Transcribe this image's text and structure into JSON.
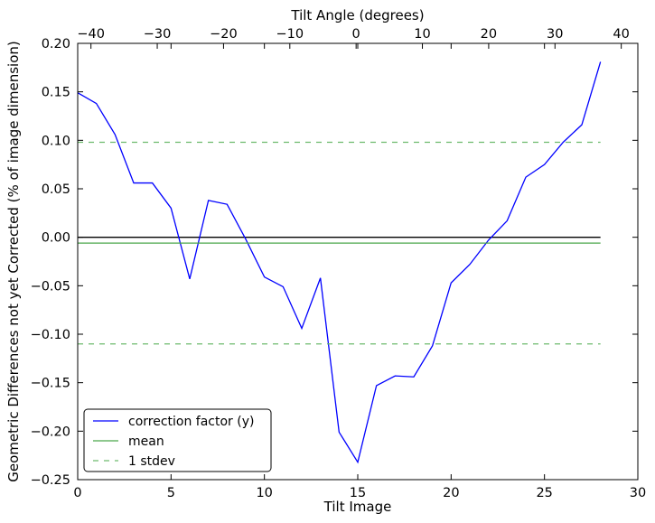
{
  "chart_data": {
    "type": "line",
    "xlabel": "Tilt Image",
    "ylabel": "Geometric Differences not yet Corrected (% of image dimension)",
    "top_xlabel": "Tilt Angle (degrees)",
    "xlim": [
      0,
      30
    ],
    "ylim": [
      -0.25,
      0.2
    ],
    "top_xlim": [
      -42,
      42.5
    ],
    "xticks": [
      0,
      5,
      10,
      15,
      20,
      25,
      30
    ],
    "xtick_labels": [
      "0",
      "5",
      "10",
      "15",
      "20",
      "25",
      "30"
    ],
    "yticks": [
      -0.25,
      -0.2,
      -0.15,
      -0.1,
      -0.05,
      0.0,
      0.05,
      0.1,
      0.15,
      0.2
    ],
    "ytick_labels": [
      "−0.25",
      "−0.20",
      "−0.15",
      "−0.10",
      "−0.05",
      "0.00",
      "0.05",
      "0.10",
      "0.15",
      "0.20"
    ],
    "top_xticks": [
      -40,
      -30,
      -20,
      -10,
      0,
      10,
      20,
      30,
      40
    ],
    "top_xtick_labels": [
      "−40",
      "−30",
      "−20",
      "−10",
      "0",
      "10",
      "20",
      "30",
      "40"
    ],
    "grid": false,
    "legend_position": "lower-left",
    "series": [
      {
        "name": "correction factor (y)",
        "color": "#0000ff",
        "style": "solid",
        "x": [
          0,
          1,
          2,
          3,
          4,
          5,
          6,
          7,
          8,
          9,
          10,
          11,
          12,
          13,
          14,
          15,
          16,
          17,
          18,
          19,
          20,
          21,
          22,
          23,
          24,
          25,
          26,
          27,
          28
        ],
        "values": [
          0.149,
          0.138,
          0.106,
          0.056,
          0.056,
          0.03,
          -0.043,
          0.038,
          0.034,
          -0.002,
          -0.041,
          -0.051,
          -0.094,
          -0.042,
          -0.201,
          -0.232,
          -0.153,
          -0.143,
          -0.144,
          -0.112,
          -0.047,
          -0.028,
          -0.003,
          0.017,
          0.062,
          0.075,
          0.098,
          0.116,
          0.181
        ]
      },
      {
        "name": "mean",
        "color": "#4aa64a",
        "style": "solid",
        "x": [
          0,
          28
        ],
        "values": [
          -0.006,
          -0.006
        ]
      },
      {
        "name": "1 stdev",
        "color": "#6dbb6d",
        "style": "dashed",
        "x": [
          0,
          28
        ],
        "values": [
          0.098,
          0.098
        ]
      },
      {
        "name": "",
        "color": "#6dbb6d",
        "style": "dashed",
        "x": [
          0,
          28
        ],
        "values": [
          -0.11,
          -0.11
        ]
      }
    ],
    "zero_line": {
      "color": "#000000",
      "x": [
        0,
        28
      ],
      "value": 0.0
    }
  }
}
